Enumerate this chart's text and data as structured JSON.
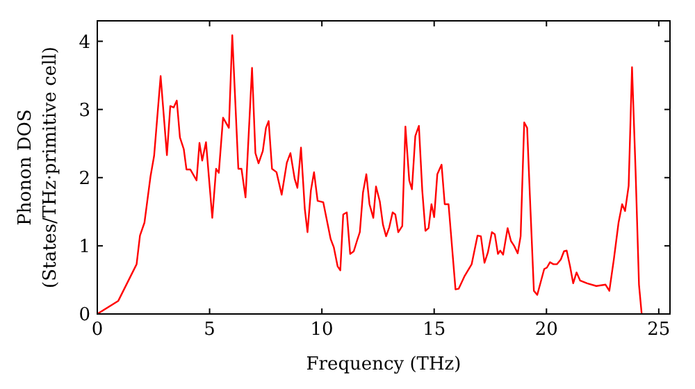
{
  "chart_data": {
    "type": "line",
    "xlabel": "Frequency (THz)",
    "ylabel": "Phonon DOS\n(States/THz·primitive cell)",
    "xlim": [
      0,
      25.5
    ],
    "ylim": [
      0,
      4.3
    ],
    "xticks": [
      0,
      5,
      10,
      15,
      20,
      25
    ],
    "yticks": [
      0,
      1,
      2,
      3,
      4
    ],
    "grid": false,
    "marker": "none",
    "line_style": "solid",
    "series": [
      {
        "color": "#ff0000",
        "x": [
          0,
          0.93,
          1.75,
          1.9,
          2.1,
          2.37,
          2.53,
          2.82,
          3.1,
          3.25,
          3.4,
          3.54,
          3.68,
          3.85,
          3.97,
          4.14,
          4.42,
          4.55,
          4.67,
          4.84,
          5.12,
          5.29,
          5.41,
          5.6,
          5.86,
          6.01,
          6.28,
          6.42,
          6.6,
          6.89,
          7.04,
          7.18,
          7.37,
          7.51,
          7.63,
          7.78,
          7.98,
          8.21,
          8.44,
          8.6,
          8.79,
          8.91,
          9.07,
          9.24,
          9.36,
          9.51,
          9.65,
          9.81,
          10.06,
          10.39,
          10.53,
          10.7,
          10.82,
          10.95,
          11.11,
          11.26,
          11.42,
          11.56,
          11.69,
          11.83,
          11.98,
          12.12,
          12.29,
          12.41,
          12.58,
          12.72,
          12.86,
          13.0,
          13.15,
          13.27,
          13.4,
          13.58,
          13.72,
          13.89,
          14.01,
          14.16,
          14.32,
          14.47,
          14.61,
          14.75,
          14.88,
          15.0,
          15.14,
          15.33,
          15.47,
          15.64,
          15.95,
          16.09,
          16.36,
          16.67,
          16.93,
          17.08,
          17.24,
          17.39,
          17.57,
          17.7,
          17.84,
          17.94,
          18.07,
          18.27,
          18.42,
          18.56,
          18.72,
          18.85,
          19.01,
          19.14,
          19.26,
          19.44,
          19.59,
          19.9,
          20.02,
          20.16,
          20.31,
          20.47,
          20.64,
          20.78,
          20.9,
          21.05,
          21.19,
          21.34,
          21.5,
          21.81,
          22.22,
          22.63,
          22.8,
          23.0,
          23.21,
          23.37,
          23.5,
          23.66,
          23.81,
          23.97,
          24.12,
          24.24
        ],
        "values": [
          0,
          0.19,
          0.73,
          1.15,
          1.34,
          2.02,
          2.32,
          3.49,
          2.33,
          3.05,
          3.03,
          3.13,
          2.59,
          2.42,
          2.12,
          2.12,
          1.96,
          2.51,
          2.25,
          2.52,
          1.41,
          2.13,
          2.07,
          2.88,
          2.73,
          4.09,
          2.13,
          2.13,
          1.71,
          3.61,
          2.36,
          2.21,
          2.39,
          2.73,
          2.83,
          2.13,
          2.08,
          1.75,
          2.22,
          2.36,
          1.98,
          1.85,
          2.44,
          1.54,
          1.2,
          1.81,
          2.08,
          1.66,
          1.64,
          1.1,
          0.98,
          0.7,
          0.64,
          1.46,
          1.49,
          0.88,
          0.92,
          1.07,
          1.2,
          1.78,
          2.05,
          1.61,
          1.41,
          1.87,
          1.65,
          1.31,
          1.14,
          1.27,
          1.49,
          1.46,
          1.2,
          1.29,
          2.75,
          1.96,
          1.83,
          2.61,
          2.76,
          1.81,
          1.22,
          1.26,
          1.61,
          1.42,
          2.05,
          2.19,
          1.61,
          1.61,
          0.36,
          0.37,
          0.56,
          0.73,
          1.15,
          1.14,
          0.75,
          0.9,
          1.2,
          1.17,
          0.88,
          0.93,
          0.87,
          1.26,
          1.07,
          1.0,
          0.89,
          1.14,
          2.81,
          2.73,
          1.75,
          0.34,
          0.28,
          0.66,
          0.68,
          0.76,
          0.73,
          0.73,
          0.8,
          0.92,
          0.93,
          0.7,
          0.45,
          0.61,
          0.49,
          0.45,
          0.41,
          0.43,
          0.34,
          0.8,
          1.34,
          1.61,
          1.51,
          1.88,
          3.62,
          2.08,
          0.43,
          0
        ]
      }
    ]
  }
}
